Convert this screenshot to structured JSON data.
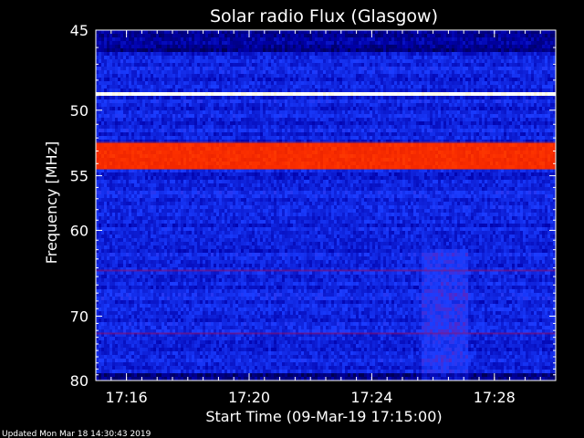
{
  "chart_data": {
    "type": "heatmap",
    "title": "Solar radio Flux (Glasgow)",
    "xlabel": "Start Time (09-Mar-19 17:15:00)",
    "ylabel": "Frequency [MHz]",
    "x_range": [
      "17:15:00",
      "17:30:00"
    ],
    "x_ticks": [
      {
        "value": "17:16",
        "label": "17:16"
      },
      {
        "value": "17:20",
        "label": "17:20"
      },
      {
        "value": "17:24",
        "label": "17:24"
      },
      {
        "value": "17:28",
        "label": "17:28"
      }
    ],
    "y_range": [
      45,
      80
    ],
    "y_ticks": [
      45,
      50,
      55,
      60,
      70,
      80
    ],
    "y_scale": "reciprocal",
    "colormap": [
      "#000033",
      "#0000aa",
      "#1a3cff",
      "#7a14a0",
      "#c00000",
      "#ff3300",
      "#ffcc33",
      "#ffffff"
    ],
    "emission_bands": [
      {
        "freq_low": 48.8,
        "freq_high": 49.0,
        "intensity": "saturated"
      },
      {
        "freq_low": 52.3,
        "freq_high": 54.5,
        "intensity": "high"
      },
      {
        "freq_low": 64.2,
        "freq_high": 64.4,
        "intensity": "medium"
      },
      {
        "freq_low": 72.3,
        "freq_high": 72.5,
        "intensity": "medium"
      }
    ],
    "features": [
      {
        "type": "broadband-enhancement",
        "time_start": "17:25:40",
        "time_end": "17:27:10",
        "freq_low": 62,
        "freq_high": 80
      }
    ]
  },
  "footer": {
    "updated": "Updated Mon Mar 18 14:30:43 2019"
  }
}
